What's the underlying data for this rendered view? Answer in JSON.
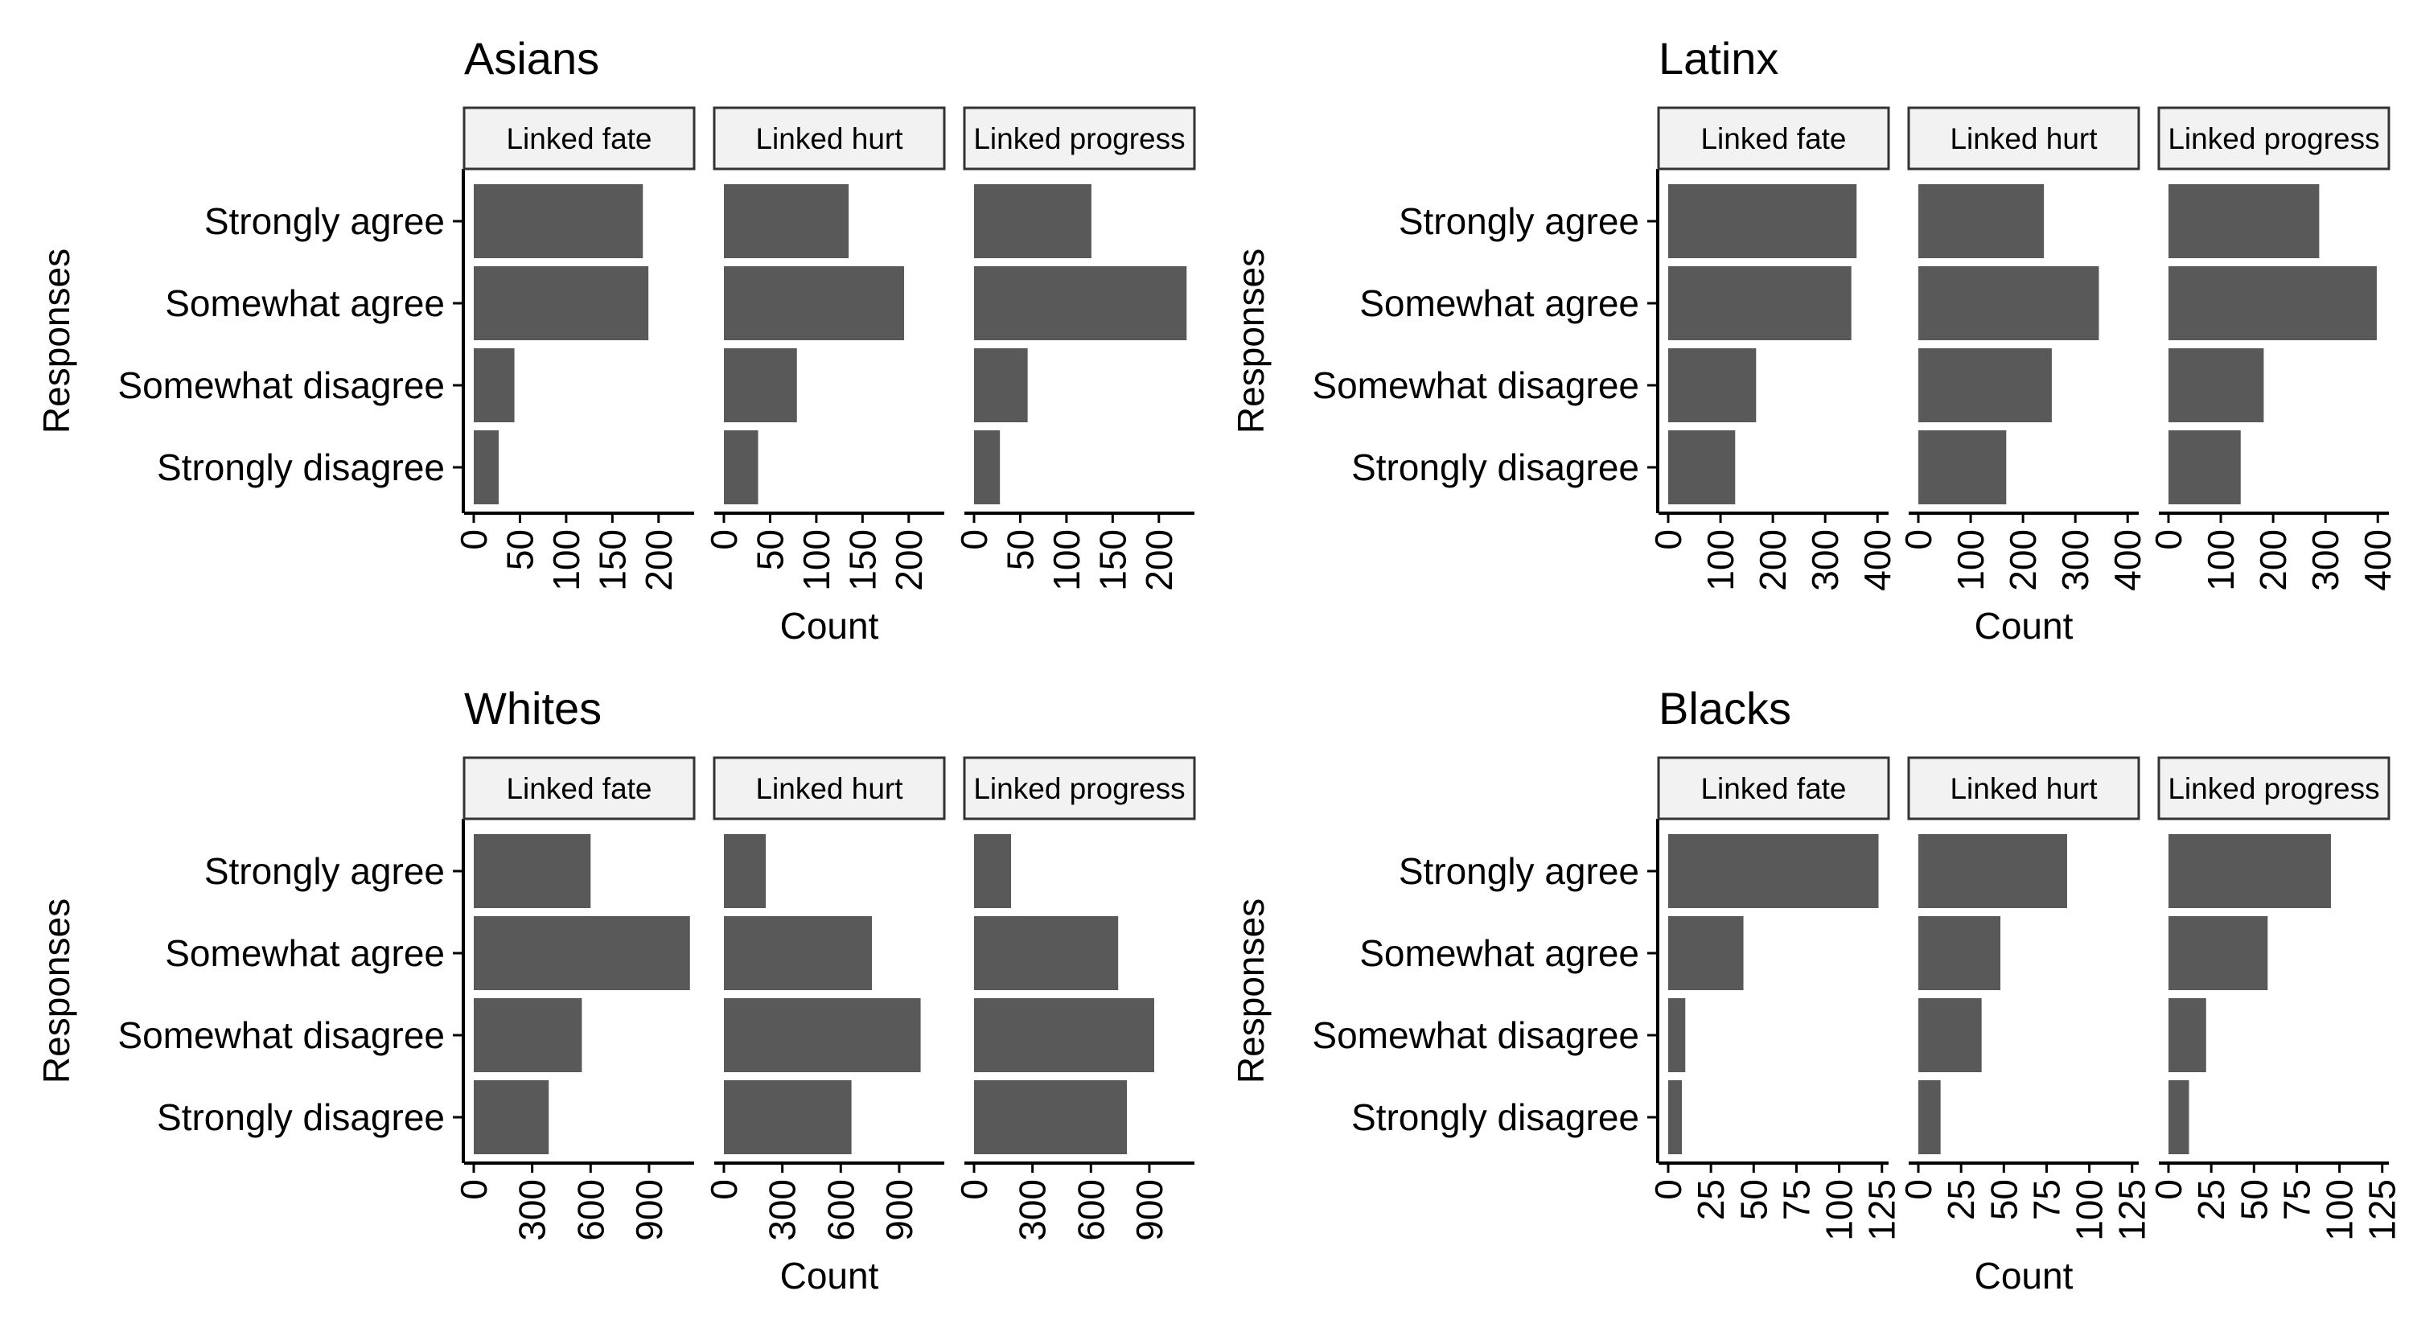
{
  "chart_data": [
    {
      "type": "bar",
      "title": "Asians",
      "ylabel": "Responses",
      "xlabel": "Count",
      "categories": [
        "Strongly agree",
        "Somewhat agree",
        "Somewhat disagree",
        "Strongly disagree"
      ],
      "xlim": [
        0,
        235
      ],
      "xticks": [
        0,
        50,
        100,
        150,
        200
      ],
      "facets": [
        {
          "label": "Linked fate",
          "values": [
            183,
            189,
            44,
            27
          ]
        },
        {
          "label": "Linked hurt",
          "values": [
            135,
            195,
            79,
            37
          ]
        },
        {
          "label": "Linked progress",
          "values": [
            127,
            230,
            58,
            28
          ]
        }
      ]
    },
    {
      "type": "bar",
      "title": "Latinx",
      "ylabel": "Responses",
      "xlabel": "Count",
      "categories": [
        "Strongly agree",
        "Somewhat agree",
        "Somewhat disagree",
        "Strongly disagree"
      ],
      "xlim": [
        0,
        415
      ],
      "xticks": [
        0,
        100,
        200,
        300,
        400
      ],
      "facets": [
        {
          "label": "Linked fate",
          "values": [
            360,
            350,
            168,
            128
          ]
        },
        {
          "label": "Linked hurt",
          "values": [
            240,
            345,
            255,
            168
          ]
        },
        {
          "label": "Linked progress",
          "values": [
            288,
            398,
            182,
            138
          ]
        }
      ]
    },
    {
      "type": "bar",
      "title": "Whites",
      "ylabel": "Responses",
      "xlabel": "Count",
      "categories": [
        "Strongly agree",
        "Somewhat agree",
        "Somewhat disagree",
        "Strongly disagree"
      ],
      "xlim": [
        0,
        1115
      ],
      "xticks": [
        0,
        300,
        600,
        900
      ],
      "facets": [
        {
          "label": "Linked fate",
          "values": [
            600,
            1110,
            555,
            385
          ]
        },
        {
          "label": "Linked hurt",
          "values": [
            215,
            760,
            1010,
            655
          ]
        },
        {
          "label": "Linked progress",
          "values": [
            190,
            740,
            925,
            785
          ]
        }
      ]
    },
    {
      "type": "bar",
      "title": "Blacks",
      "ylabel": "Responses",
      "xlabel": "Count",
      "categories": [
        "Strongly agree",
        "Somewhat agree",
        "Somewhat disagree",
        "Strongly disagree"
      ],
      "xlim": [
        0,
        127
      ],
      "xticks": [
        0,
        25,
        50,
        75,
        100,
        125
      ],
      "facets": [
        {
          "label": "Linked fate",
          "values": [
            123,
            44,
            10,
            8
          ]
        },
        {
          "label": "Linked hurt",
          "values": [
            87,
            48,
            37,
            13
          ]
        },
        {
          "label": "Linked progress",
          "values": [
            95,
            58,
            22,
            12
          ]
        }
      ]
    }
  ],
  "colors": {
    "bar": "#595959",
    "strip_fill": "#f2f2f2",
    "strip_border": "#333333",
    "axis": "#000000",
    "background": "#ffffff"
  }
}
